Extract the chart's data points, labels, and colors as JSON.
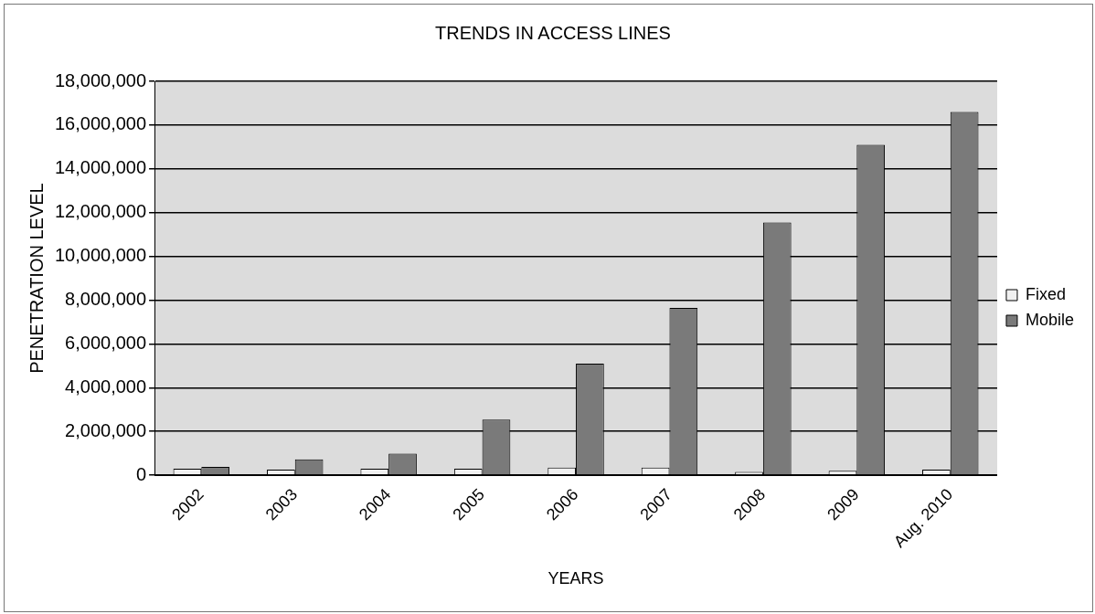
{
  "chart_data": {
    "type": "bar",
    "title": "TRENDS IN ACCESS LINES",
    "xlabel": "YEARS",
    "ylabel": "PENETRATION LEVEL",
    "categories": [
      "2002",
      "2003",
      "2004",
      "2005",
      "2006",
      "2007",
      "2008",
      "2009",
      "Aug. 2010"
    ],
    "series": [
      {
        "name": "Fixed",
        "color": "#f0f0f0",
        "values": [
          300000,
          250000,
          300000,
          300000,
          350000,
          350000,
          150000,
          200000,
          250000
        ]
      },
      {
        "name": "Mobile",
        "color": "#7a7a7a",
        "values": [
          380000,
          720000,
          990000,
          2540000,
          5100000,
          7650000,
          11550000,
          15100000,
          16600000
        ]
      }
    ],
    "ylim": [
      0,
      18000000
    ],
    "yticks": [
      {
        "value": 0,
        "label": "0"
      },
      {
        "value": 2000000,
        "label": "2,000,000"
      },
      {
        "value": 4000000,
        "label": "4,000,000"
      },
      {
        "value": 6000000,
        "label": "6,000,000"
      },
      {
        "value": 8000000,
        "label": "8,000,000"
      },
      {
        "value": 10000000,
        "label": "10,000,000"
      },
      {
        "value": 12000000,
        "label": "12,000,000"
      },
      {
        "value": 14000000,
        "label": "14,000,000"
      },
      {
        "value": 16000000,
        "label": "16,000,000"
      },
      {
        "value": 18000000,
        "label": "18,000,000"
      }
    ],
    "grid": "y",
    "legend": "right"
  }
}
